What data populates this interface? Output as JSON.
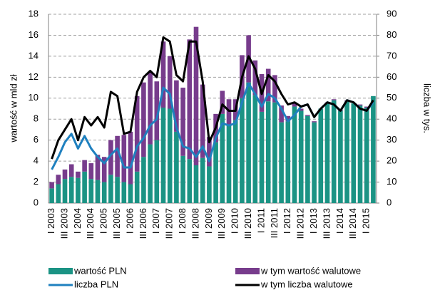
{
  "chart_data": {
    "type": "bar",
    "categories": [
      "I 2003",
      null,
      "III 2003",
      null,
      "I 2004",
      null,
      "III 2004",
      null,
      "I 2005",
      null,
      "III 2005",
      null,
      "I 2006",
      null,
      "III 2006",
      null,
      "I 2007",
      null,
      "III 2007",
      null,
      "I 2008",
      null,
      "III 2008",
      null,
      "I 2009",
      null,
      "III 2009",
      null,
      "I 2010",
      null,
      "III 2010",
      null,
      "I 2011",
      null,
      "III 2011",
      null,
      "I 2012",
      null,
      "III 2012",
      null,
      "I 2013",
      null,
      "III 2013",
      null,
      "I 2014",
      null,
      "III 2014",
      null,
      "I 2015",
      null
    ],
    "y_label": "wartość w mld zł",
    "y2_label": "liczba w tys.",
    "ylim": [
      0,
      18
    ],
    "yticks": [
      0,
      2,
      4,
      6,
      8,
      10,
      12,
      14,
      16,
      18
    ],
    "y2lim": [
      0,
      90
    ],
    "y2ticks": [
      0,
      10,
      20,
      30,
      40,
      50,
      60,
      70,
      80,
      90
    ],
    "grid": true,
    "stacked": true,
    "legend": "bottom",
    "series": [
      {
        "name": "wartość PLN",
        "type": "bar",
        "color": "#1b9384",
        "values": [
          1.4,
          1.8,
          2.3,
          2.5,
          2.4,
          3.0,
          2.3,
          2.2,
          2.0,
          2.7,
          2.5,
          2.0,
          1.8,
          3.0,
          4.4,
          5.6,
          6.0,
          9.1,
          9.0,
          6.8,
          4.5,
          4.2,
          3.6,
          4.3,
          3.5,
          5.8,
          8.5,
          7.5,
          7.9,
          10.0,
          11.5,
          10.3,
          8.7,
          9.7,
          9.6,
          7.7,
          7.8,
          9.2,
          8.8,
          8.3,
          7.7,
          9.0,
          9.5,
          9.8,
          8.8,
          9.7,
          9.5,
          9.3,
          9.1,
          10.2
        ]
      },
      {
        "name": "w tym wartość walutowe",
        "type": "bar",
        "color": "#773c8c",
        "values": [
          0.6,
          0.9,
          0.9,
          1.2,
          0.6,
          1.1,
          1.5,
          2.4,
          2.4,
          3.3,
          3.9,
          4.5,
          5.0,
          7.2,
          7.1,
          6.9,
          5.6,
          6.3,
          5.0,
          4.9,
          6.5,
          11.4,
          13.2,
          7.0,
          2.8,
          2.7,
          2.2,
          2.4,
          2.0,
          4.1,
          4.5,
          3.3,
          3.6,
          3.1,
          2.6,
          1.6,
          0.5,
          0.4,
          0.2,
          0.1,
          0.1,
          0,
          0.1,
          0.1,
          0.1,
          0.1,
          0,
          0.1,
          0.1,
          0
        ]
      },
      {
        "name": "liczba PLN",
        "type": "line",
        "axis": "y2",
        "color": "#1f80bf",
        "values": [
          16,
          22,
          29,
          33,
          26,
          32,
          26,
          22,
          19,
          23,
          26,
          17,
          17,
          27,
          31,
          37,
          40,
          55,
          52,
          36,
          27,
          26,
          22,
          27,
          20,
          31,
          38,
          37,
          38,
          48,
          57,
          52,
          46,
          52,
          50,
          45,
          39,
          42,
          46,
          47,
          41,
          45,
          48,
          47,
          44,
          49,
          48,
          45,
          44,
          48
        ]
      },
      {
        "name": "w tym liczba walutowe",
        "type": "line",
        "axis": "y2",
        "color": "#000000",
        "values": [
          21,
          30,
          35,
          40,
          30,
          41,
          37,
          41,
          36,
          53,
          51,
          33,
          34,
          53,
          60,
          63,
          60,
          79,
          77,
          61,
          58,
          77,
          77,
          58,
          29,
          36,
          47,
          44,
          44,
          60,
          70,
          64,
          52,
          61,
          58,
          52,
          47,
          48,
          46,
          47,
          41,
          45,
          48,
          47,
          44,
          49,
          48,
          45,
          44,
          49
        ]
      }
    ]
  }
}
